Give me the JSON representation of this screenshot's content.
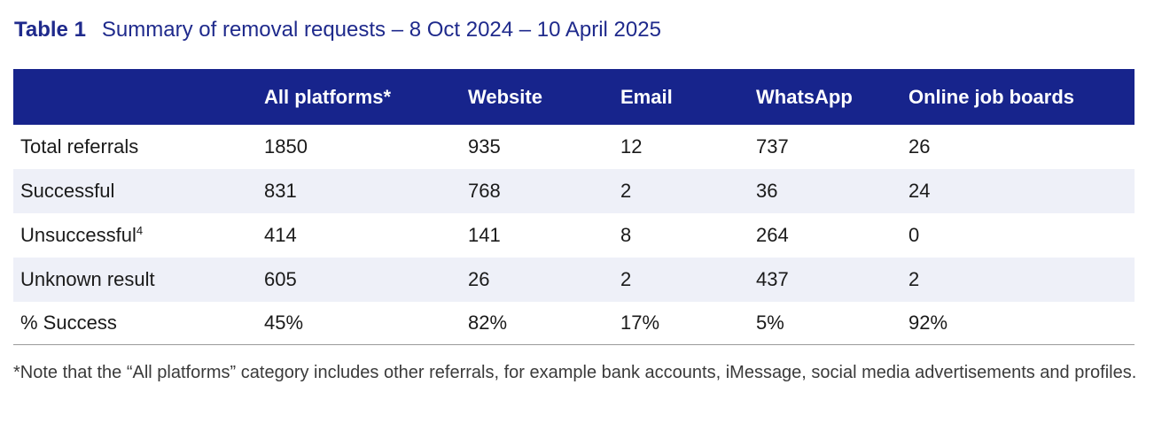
{
  "caption": {
    "number": "Table 1",
    "title": "Summary of removal requests – 8 Oct 2024 – 10 April 2025"
  },
  "table": {
    "headers": [
      "",
      "All platforms*",
      "Website",
      "Email",
      "WhatsApp",
      "Online job boards"
    ],
    "rows": [
      {
        "label": "Total referrals",
        "sup": "",
        "values": [
          "1850",
          "935",
          "12",
          "737",
          "26"
        ]
      },
      {
        "label": "Successful",
        "sup": "",
        "values": [
          "831",
          "768",
          "2",
          "36",
          "24"
        ]
      },
      {
        "label": "Unsuccessful",
        "sup": "4",
        "values": [
          "414",
          "141",
          "8",
          "264",
          "0"
        ]
      },
      {
        "label": "Unknown result",
        "sup": "",
        "values": [
          "605",
          "26",
          "2",
          "437",
          "2"
        ]
      },
      {
        "label": "% Success",
        "sup": "",
        "values": [
          "45%",
          "82%",
          "17%",
          "5%",
          "92%"
        ]
      }
    ]
  },
  "note": "*Note that the “All platforms” category includes other referrals, for example bank accounts, iMessage, social media advertisements and profiles."
}
